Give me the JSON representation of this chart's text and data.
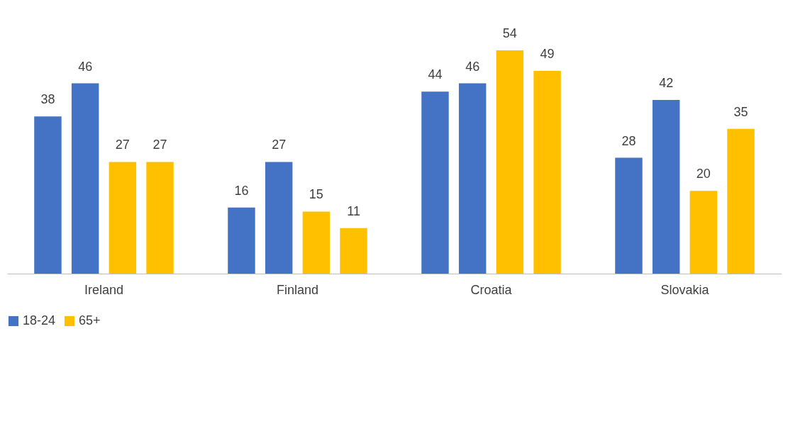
{
  "chart_data": {
    "type": "bar",
    "categories": [
      "Ireland",
      "Finland",
      "Croatia",
      "Slovakia"
    ],
    "series": [
      {
        "name": "18-24",
        "color": "#4472c4",
        "values": [
          38,
          16,
          44,
          28
        ]
      },
      {
        "color": "#4472c4",
        "values": [
          46,
          27,
          46,
          42
        ]
      },
      {
        "name": "65+",
        "color": "#ffc000",
        "values": [
          27,
          15,
          54,
          20
        ]
      },
      {
        "color": "#ffc000",
        "values": [
          27,
          11,
          49,
          35
        ]
      }
    ],
    "data_labels": true,
    "legend": "bottom",
    "grid": false
  }
}
